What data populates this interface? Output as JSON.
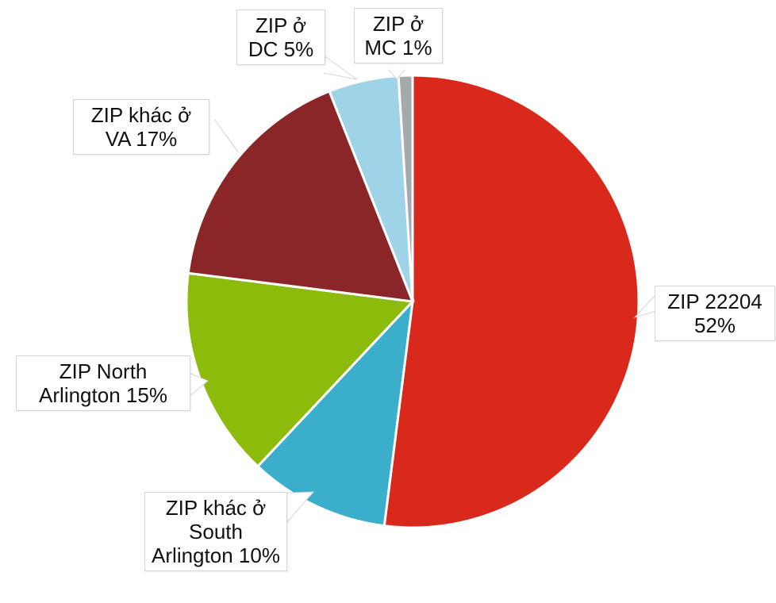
{
  "chart_data": {
    "type": "pie",
    "categories": [
      "ZIP 22204",
      "ZIP khác ở South Arlington",
      "ZIP North Arlington",
      "ZIP khác ở VA",
      "ZIP ở DC",
      "ZIP ở MC"
    ],
    "values": [
      52,
      10,
      15,
      17,
      5,
      1
    ],
    "value_labels": [
      "52%",
      "10%",
      "15%",
      "17%",
      "5%",
      "1%"
    ],
    "colors": [
      "#d9291c",
      "#3aaecb",
      "#8dbb0b",
      "#8b2628",
      "#9ed3e8",
      "#a6a9ab"
    ],
    "start_angle": "top",
    "direction": "clockwise"
  }
}
